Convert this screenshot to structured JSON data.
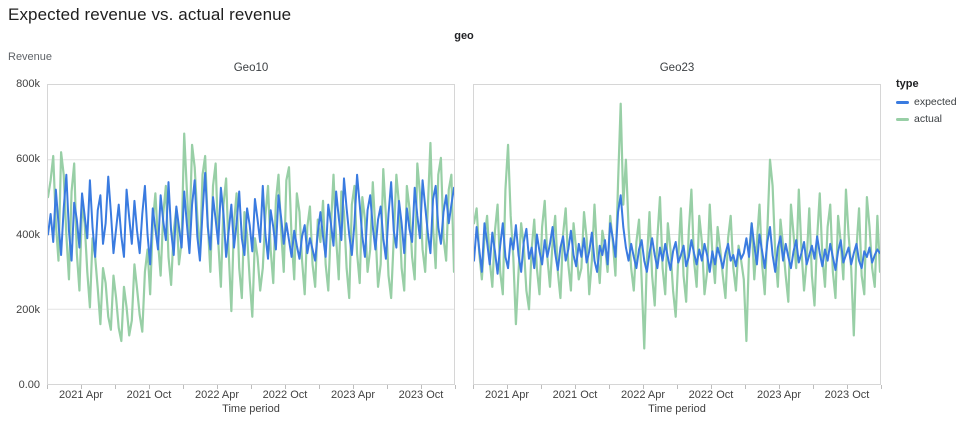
{
  "title": "Expected revenue vs. actual revenue",
  "facet_header_label": "geo",
  "y_axis": {
    "title": "Revenue",
    "ticks": [
      {
        "label": "0.00",
        "value_k": 0
      },
      {
        "label": "200k",
        "value_k": 200
      },
      {
        "label": "400k",
        "value_k": 400
      },
      {
        "label": "600k",
        "value_k": 600
      },
      {
        "label": "800k",
        "value_k": 800
      }
    ],
    "grid_values_k": [
      200,
      400,
      600
    ]
  },
  "x_axis": {
    "title": "Time period",
    "total_months": 36,
    "minor_tick_every_months": 3,
    "labels": [
      {
        "text": "2021 Apr",
        "month": 3
      },
      {
        "text": "2021 Oct",
        "month": 9
      },
      {
        "text": "2022 Apr",
        "month": 15
      },
      {
        "text": "2022 Oct",
        "month": 21
      },
      {
        "text": "2023 Apr",
        "month": 27
      },
      {
        "text": "2023 Oct",
        "month": 33
      }
    ]
  },
  "legend": {
    "title": "type",
    "items": [
      {
        "label": "expected",
        "color": "#3a7be0"
      },
      {
        "label": "actual",
        "color": "#98cfa6"
      }
    ]
  },
  "colors": {
    "expected_line": "#3a7be0",
    "actual_line": "#98cfa6",
    "gridline": "#e3e3e3",
    "panel_border": "#d6d6d6"
  },
  "chart_data": [
    {
      "type": "line",
      "facet": "Geo10",
      "x_unit": "week",
      "x_start": "2021-01",
      "x_end": "2023-12",
      "ylabel": "Revenue",
      "ylim": [
        0,
        800000
      ],
      "series": [
        {
          "name": "expected",
          "color": "#3a7be0",
          "values_k": [
            400,
            455,
            380,
            520,
            430,
            345,
            470,
            560,
            410,
            330,
            485,
            440,
            365,
            510,
            450,
            390,
            545,
            420,
            340,
            465,
            505,
            375,
            430,
            555,
            460,
            350,
            415,
            480,
            395,
            340,
            520,
            445,
            375,
            490,
            410,
            350,
            455,
            530,
            400,
            320,
            470,
            415,
            360,
            505,
            435,
            385,
            540,
            410,
            345,
            475,
            420,
            365,
            515,
            430,
            350,
            480,
            545,
            395,
            330,
            460,
            565,
            420,
            360,
            500,
            440,
            375,
            525,
            455,
            340,
            410,
            480,
            365,
            430,
            515,
            390,
            345,
            470,
            425,
            355,
            495,
            440,
            380,
            530,
            400,
            335,
            465,
            420,
            360,
            505,
            445,
            375,
            430,
            385,
            340,
            410,
            370,
            335,
            395,
            425,
            350,
            390,
            360,
            330,
            405,
            460,
            395,
            340,
            480,
            430,
            370,
            515,
            445,
            385,
            550,
            470,
            400,
            345,
            430,
            560,
            480,
            395,
            340,
            465,
            505,
            420,
            360,
            440,
            475,
            390,
            335,
            455,
            540,
            410,
            365,
            490,
            430,
            350,
            470,
            415,
            380,
            525,
            450,
            390,
            545,
            475,
            405,
            350,
            495,
            530,
            420,
            375,
            460,
            505,
            430,
            480,
            525
          ]
        },
        {
          "name": "actual",
          "color": "#98cfa6",
          "values_k": [
            500,
            545,
            610,
            430,
            330,
            620,
            560,
            400,
            280,
            515,
            590,
            350,
            250,
            480,
            430,
            300,
            205,
            390,
            340,
            255,
            160,
            310,
            270,
            180,
            145,
            290,
            230,
            150,
            115,
            260,
            205,
            130,
            170,
            320,
            255,
            185,
            140,
            300,
            360,
            240,
            430,
            510,
            380,
            290,
            455,
            530,
            340,
            265,
            410,
            470,
            320,
            380,
            670,
            520,
            390,
            640,
            580,
            450,
            340,
            560,
            610,
            430,
            300,
            530,
            590,
            380,
            260,
            480,
            550,
            350,
            195,
            430,
            510,
            310,
            230,
            460,
            400,
            280,
            180,
            390,
            340,
            250,
            310,
            450,
            530,
            360,
            270,
            490,
            560,
            410,
            300,
            545,
            580,
            390,
            280,
            510,
            460,
            330,
            240,
            420,
            475,
            320,
            260,
            440,
            380,
            490,
            320,
            250,
            420,
            560,
            390,
            280,
            515,
            460,
            310,
            230,
            480,
            530,
            350,
            270,
            500,
            440,
            300,
            360,
            540,
            410,
            260,
            320,
            575,
            450,
            290,
            230,
            390,
            560,
            480,
            310,
            250,
            530,
            470,
            340,
            280,
            590,
            510,
            360,
            300,
            470,
            645,
            420,
            310,
            560,
            605,
            390,
            330,
            520,
            560,
            300
          ]
        }
      ]
    },
    {
      "type": "line",
      "facet": "Geo23",
      "x_unit": "week",
      "x_start": "2021-01",
      "x_end": "2023-12",
      "ylabel": "Revenue",
      "ylim": [
        0,
        800000
      ],
      "series": [
        {
          "name": "expected",
          "color": "#3a7be0",
          "values_k": [
            330,
            420,
            360,
            300,
            430,
            380,
            320,
            405,
            355,
            295,
            370,
            430,
            340,
            310,
            390,
            360,
            425,
            345,
            300,
            380,
            415,
            335,
            365,
            310,
            400,
            355,
            320,
            385,
            340,
            375,
            420,
            350,
            305,
            365,
            395,
            330,
            360,
            410,
            345,
            315,
            375,
            340,
            390,
            325,
            355,
            405,
            330,
            300,
            370,
            345,
            385,
            320,
            430,
            390,
            340,
            460,
            505,
            420,
            365,
            330,
            375,
            340,
            310,
            360,
            385,
            330,
            300,
            350,
            390,
            345,
            310,
            365,
            330,
            375,
            340,
            305,
            355,
            380,
            325,
            345,
            370,
            315,
            340,
            385,
            350,
            320,
            360,
            330,
            375,
            345,
            300,
            355,
            320,
            365,
            340,
            310,
            350,
            375,
            330,
            345,
            315,
            360,
            335,
            350,
            390,
            340,
            430,
            370,
            320,
            400,
            355,
            310,
            380,
            420,
            345,
            300,
            365,
            395,
            330,
            375,
            340,
            310,
            355,
            385,
            325,
            350,
            380,
            320,
            345,
            370,
            335,
            395,
            350,
            315,
            360,
            330,
            375,
            340,
            305,
            355,
            385,
            325,
            345,
            365,
            320,
            350,
            375,
            330,
            310,
            355,
            340,
            365,
            325,
            345,
            360,
            350
          ]
        },
        {
          "name": "actual",
          "color": "#98cfa6",
          "values_k": [
            430,
            470,
            350,
            280,
            390,
            450,
            330,
            260,
            410,
            480,
            300,
            240,
            520,
            640,
            450,
            340,
            160,
            300,
            430,
            370,
            250,
            200,
            360,
            440,
            310,
            240,
            420,
            490,
            340,
            260,
            380,
            450,
            300,
            230,
            400,
            470,
            320,
            250,
            430,
            360,
            280,
            310,
            460,
            390,
            240,
            330,
            480,
            350,
            270,
            410,
            370,
            300,
            450,
            380,
            290,
            540,
            750,
            480,
            600,
            420,
            310,
            250,
            380,
            440,
            280,
            95,
            330,
            460,
            290,
            210,
            390,
            500,
            310,
            240,
            430,
            360,
            250,
            180,
            340,
            470,
            290,
            220,
            410,
            520,
            330,
            260,
            450,
            380,
            240,
            300,
            480,
            350,
            270,
            420,
            360,
            290,
            230,
            390,
            450,
            310,
            250,
            370,
            330,
            280,
            115,
            350,
            430,
            280,
            380,
            480,
            320,
            240,
            410,
            600,
            530,
            350,
            260,
            440,
            370,
            290,
            220,
            480,
            400,
            310,
            520,
            360,
            250,
            330,
            470,
            290,
            210,
            390,
            510,
            340,
            260,
            420,
            480,
            300,
            230,
            450,
            380,
            280,
            520,
            400,
            310,
            130,
            360,
            470,
            290,
            240,
            500,
            420,
            310,
            260,
            450,
            300
          ]
        }
      ]
    }
  ]
}
